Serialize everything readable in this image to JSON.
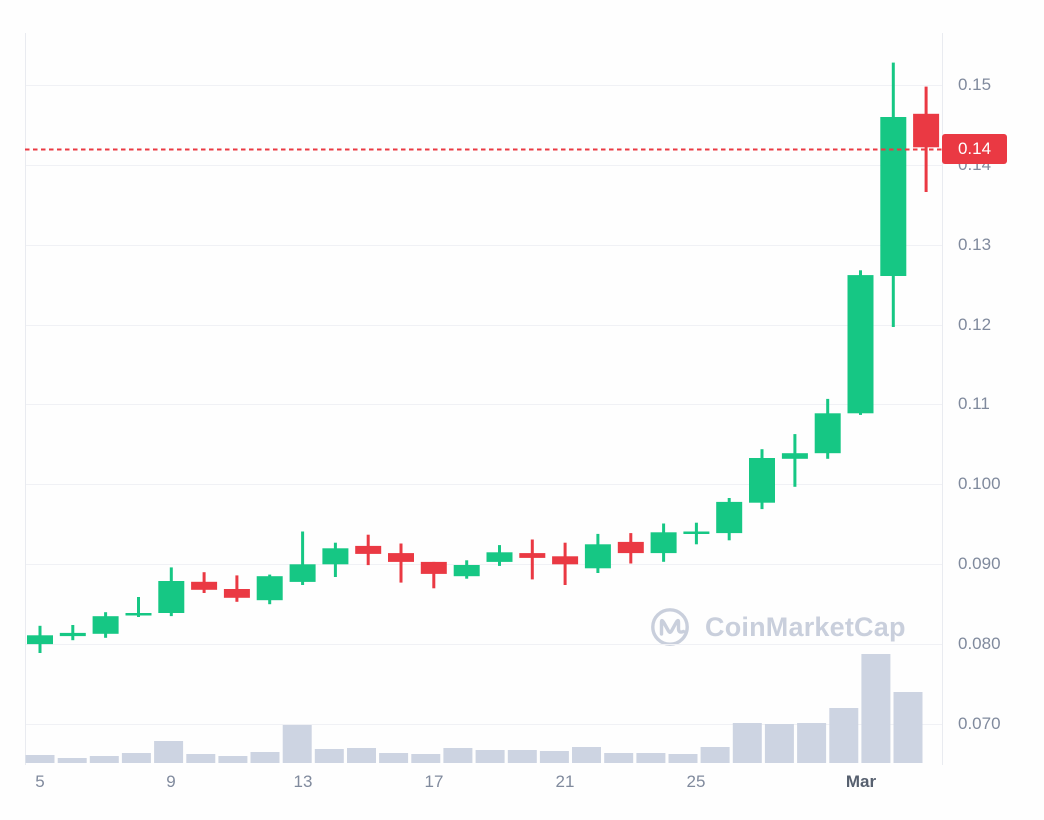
{
  "colors": {
    "up": "#16c784",
    "down": "#ea3943",
    "volume_bar": "#cdd4e2",
    "grid": "#f0f1f5",
    "axis_border": "#e9ebf0",
    "tick_label": "#808a9d",
    "month_tick_label": "#57606f",
    "price_line": "#ea3943",
    "badge_bg": "#ea3943",
    "badge_text": "#ffffff",
    "watermark": "#c9cfdc",
    "background": "#fefefe"
  },
  "watermark": {
    "text": "CoinMarketCap"
  },
  "chart_data": {
    "type": "candlestick",
    "title": "",
    "xlabel": "",
    "ylabel": "",
    "grid": true,
    "legend": false,
    "ylim": [
      0.066,
      0.1565
    ],
    "y_axis_side": "right",
    "current_price": {
      "value": 0.142,
      "label": "0.14"
    },
    "y_ticks": [
      {
        "label": "0.15",
        "price": 0.15
      },
      {
        "label": "0.14",
        "price": 0.14
      },
      {
        "label": "0.13",
        "price": 0.13
      },
      {
        "label": "0.12",
        "price": 0.12
      },
      {
        "label": "0.11",
        "price": 0.11
      },
      {
        "label": "0.100",
        "price": 0.1
      },
      {
        "label": "0.090",
        "price": 0.09
      },
      {
        "label": "0.080",
        "price": 0.08
      },
      {
        "label": "0.070",
        "price": 0.07
      }
    ],
    "x_ticks": [
      {
        "label": "5",
        "index": 0,
        "bold": false
      },
      {
        "label": "9",
        "index": 4,
        "bold": false
      },
      {
        "label": "13",
        "index": 8,
        "bold": false
      },
      {
        "label": "17",
        "index": 12,
        "bold": false
      },
      {
        "label": "21",
        "index": 16,
        "bold": false
      },
      {
        "label": "25",
        "index": 20,
        "bold": false
      },
      {
        "label": "Mar",
        "index": 25,
        "bold": true
      }
    ],
    "candles": [
      {
        "date": "Feb 5",
        "open": 0.08,
        "high": 0.0823,
        "low": 0.0789,
        "close": 0.0811,
        "volume_rel": 8
      },
      {
        "date": "Feb 6",
        "open": 0.081,
        "high": 0.0824,
        "low": 0.0805,
        "close": 0.0814,
        "volume_rel": 5
      },
      {
        "date": "Feb 7",
        "open": 0.0813,
        "high": 0.084,
        "low": 0.0808,
        "close": 0.0835,
        "volume_rel": 7
      },
      {
        "date": "Feb 8",
        "open": 0.0836,
        "high": 0.0859,
        "low": 0.0834,
        "close": 0.0839,
        "volume_rel": 10
      },
      {
        "date": "Feb 9",
        "open": 0.0839,
        "high": 0.0896,
        "low": 0.0835,
        "close": 0.0879,
        "volume_rel": 22
      },
      {
        "date": "Feb 10",
        "open": 0.0878,
        "high": 0.089,
        "low": 0.0864,
        "close": 0.0868,
        "volume_rel": 9
      },
      {
        "date": "Feb 11",
        "open": 0.0869,
        "high": 0.0886,
        "low": 0.0853,
        "close": 0.0858,
        "volume_rel": 7
      },
      {
        "date": "Feb 12",
        "open": 0.0855,
        "high": 0.0887,
        "low": 0.085,
        "close": 0.0885,
        "volume_rel": 11
      },
      {
        "date": "Feb 13",
        "open": 0.0878,
        "high": 0.0941,
        "low": 0.0874,
        "close": 0.09,
        "volume_rel": 38
      },
      {
        "date": "Feb 14",
        "open": 0.09,
        "high": 0.0927,
        "low": 0.0884,
        "close": 0.092,
        "volume_rel": 14
      },
      {
        "date": "Feb 15",
        "open": 0.0923,
        "high": 0.0937,
        "low": 0.0899,
        "close": 0.0913,
        "volume_rel": 15
      },
      {
        "date": "Feb 16",
        "open": 0.0914,
        "high": 0.0926,
        "low": 0.0877,
        "close": 0.0903,
        "volume_rel": 10
      },
      {
        "date": "Feb 17",
        "open": 0.0903,
        "high": 0.0903,
        "low": 0.087,
        "close": 0.0888,
        "volume_rel": 9
      },
      {
        "date": "Feb 18",
        "open": 0.0885,
        "high": 0.0905,
        "low": 0.0882,
        "close": 0.0899,
        "volume_rel": 15
      },
      {
        "date": "Feb 19",
        "open": 0.0903,
        "high": 0.0924,
        "low": 0.0898,
        "close": 0.0915,
        "volume_rel": 13
      },
      {
        "date": "Feb 20",
        "open": 0.0914,
        "high": 0.0931,
        "low": 0.0881,
        "close": 0.0908,
        "volume_rel": 13
      },
      {
        "date": "Feb 21",
        "open": 0.091,
        "high": 0.0927,
        "low": 0.0874,
        "close": 0.09,
        "volume_rel": 12
      },
      {
        "date": "Feb 22",
        "open": 0.0895,
        "high": 0.0938,
        "low": 0.0889,
        "close": 0.0925,
        "volume_rel": 16
      },
      {
        "date": "Feb 23",
        "open": 0.0928,
        "high": 0.0939,
        "low": 0.0901,
        "close": 0.0914,
        "volume_rel": 10
      },
      {
        "date": "Feb 24",
        "open": 0.0914,
        "high": 0.0951,
        "low": 0.0903,
        "close": 0.094,
        "volume_rel": 10
      },
      {
        "date": "Feb 25",
        "open": 0.0938,
        "high": 0.0952,
        "low": 0.0925,
        "close": 0.0941,
        "volume_rel": 9
      },
      {
        "date": "Feb 26",
        "open": 0.0939,
        "high": 0.0983,
        "low": 0.093,
        "close": 0.0978,
        "volume_rel": 16
      },
      {
        "date": "Feb 27",
        "open": 0.0977,
        "high": 0.1044,
        "low": 0.0969,
        "close": 0.1033,
        "volume_rel": 40
      },
      {
        "date": "Feb 28",
        "open": 0.1032,
        "high": 0.1063,
        "low": 0.0997,
        "close": 0.1039,
        "volume_rel": 39
      },
      {
        "date": "Feb 29",
        "open": 0.1039,
        "high": 0.1107,
        "low": 0.1032,
        "close": 0.1089,
        "volume_rel": 40
      },
      {
        "date": "Mar 1",
        "open": 0.1089,
        "high": 0.1268,
        "low": 0.1087,
        "close": 0.1262,
        "volume_rel": 55
      },
      {
        "date": "Mar 2",
        "open": 0.1261,
        "high": 0.1528,
        "low": 0.1197,
        "close": 0.146,
        "volume_rel": 109
      },
      {
        "date": "Mar 3",
        "open": 0.1464,
        "high": 0.1498,
        "low": 0.1366,
        "close": 0.1422,
        "volume_rel": 71
      }
    ]
  }
}
